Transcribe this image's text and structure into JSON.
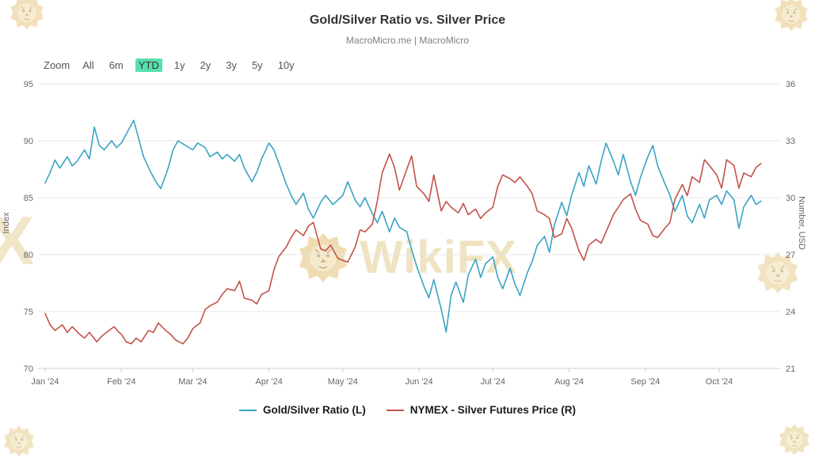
{
  "header": {
    "title": "Gold/Silver Ratio vs. Silver Price",
    "subtitle": "MacroMicro.me | MacroMicro"
  },
  "toolbar": {
    "zoom_label": "Zoom",
    "ranges": [
      "All",
      "6m",
      "YTD",
      "1y",
      "2y",
      "3y",
      "5y",
      "10y"
    ],
    "active_range": "YTD",
    "active_bg": "#57e0ad"
  },
  "watermark": {
    "text": "WikiFX",
    "partial_letter": "X",
    "color": "#eee0bb"
  },
  "chart_data": {
    "type": "line",
    "title": "Gold/Silver Ratio vs. Silver Price",
    "grid": true,
    "legend_position": "bottom",
    "x_tick_labels": [
      "Jan '24",
      "Feb '24",
      "Mar '24",
      "Apr '24",
      "May '24",
      "Jun '24",
      "Jul '24",
      "Aug '24",
      "Sep '24",
      "Oct '24"
    ],
    "x_ticks": [
      {
        "day": 0,
        "label": "Jan '24"
      },
      {
        "day": 31,
        "label": "Feb '24"
      },
      {
        "day": 60,
        "label": "Mar '24"
      },
      {
        "day": 91,
        "label": "Apr '24"
      },
      {
        "day": 121,
        "label": "May '24"
      },
      {
        "day": 152,
        "label": "Jun '24"
      },
      {
        "day": 182,
        "label": "Jul '24"
      },
      {
        "day": 213,
        "label": "Aug '24"
      },
      {
        "day": 244,
        "label": "Sep '24"
      },
      {
        "day": 274,
        "label": "Oct '24"
      }
    ],
    "left_axis": {
      "label": "Index",
      "ticks": [
        70,
        75,
        80,
        85,
        90,
        95
      ],
      "range": [
        70,
        95
      ]
    },
    "right_axis": {
      "label": "Number, USD",
      "ticks": [
        21,
        24,
        27,
        30,
        33,
        36
      ],
      "range": [
        21,
        36
      ]
    },
    "series": [
      {
        "name": "Gold/Silver Ratio (L)",
        "axis": "left",
        "color": "#3aa3c4",
        "points": [
          [
            0,
            86.3
          ],
          [
            2,
            87.2
          ],
          [
            4,
            88.3
          ],
          [
            6,
            87.6
          ],
          [
            9,
            88.6
          ],
          [
            11,
            87.8
          ],
          [
            13,
            88.2
          ],
          [
            16,
            89.2
          ],
          [
            18,
            88.4
          ],
          [
            20,
            91.2
          ],
          [
            22,
            89.6
          ],
          [
            24,
            89.2
          ],
          [
            27,
            90.0
          ],
          [
            29,
            89.4
          ],
          [
            31,
            89.8
          ],
          [
            33,
            90.6
          ],
          [
            36,
            91.8
          ],
          [
            38,
            90.2
          ],
          [
            40,
            88.6
          ],
          [
            43,
            87.2
          ],
          [
            45,
            86.4
          ],
          [
            47,
            85.8
          ],
          [
            50,
            87.6
          ],
          [
            52,
            89.2
          ],
          [
            54,
            90.0
          ],
          [
            57,
            89.6
          ],
          [
            60,
            89.2
          ],
          [
            62,
            89.8
          ],
          [
            65,
            89.4
          ],
          [
            67,
            88.6
          ],
          [
            70,
            89.0
          ],
          [
            72,
            88.4
          ],
          [
            74,
            88.8
          ],
          [
            77,
            88.2
          ],
          [
            79,
            88.8
          ],
          [
            81,
            87.6
          ],
          [
            84,
            86.4
          ],
          [
            86,
            87.2
          ],
          [
            88,
            88.4
          ],
          [
            91,
            89.8
          ],
          [
            93,
            89.2
          ],
          [
            95,
            88.0
          ],
          [
            98,
            86.2
          ],
          [
            100,
            85.2
          ],
          [
            102,
            84.4
          ],
          [
            105,
            85.4
          ],
          [
            107,
            84.0
          ],
          [
            109,
            83.2
          ],
          [
            112,
            84.6
          ],
          [
            114,
            85.2
          ],
          [
            117,
            84.4
          ],
          [
            119,
            84.8
          ],
          [
            121,
            85.2
          ],
          [
            123,
            86.4
          ],
          [
            126,
            84.8
          ],
          [
            128,
            84.2
          ],
          [
            130,
            85.0
          ],
          [
            133,
            83.6
          ],
          [
            135,
            82.8
          ],
          [
            137,
            83.8
          ],
          [
            140,
            82.0
          ],
          [
            142,
            83.2
          ],
          [
            144,
            82.4
          ],
          [
            147,
            82.0
          ],
          [
            149,
            80.4
          ],
          [
            151,
            79.0
          ],
          [
            154,
            77.2
          ],
          [
            156,
            76.2
          ],
          [
            158,
            77.8
          ],
          [
            161,
            75.2
          ],
          [
            163,
            73.2
          ],
          [
            165,
            76.4
          ],
          [
            167,
            77.6
          ],
          [
            170,
            75.8
          ],
          [
            172,
            78.2
          ],
          [
            175,
            79.6
          ],
          [
            177,
            78.0
          ],
          [
            179,
            79.2
          ],
          [
            182,
            79.8
          ],
          [
            184,
            78.0
          ],
          [
            186,
            77.0
          ],
          [
            189,
            78.8
          ],
          [
            191,
            77.4
          ],
          [
            193,
            76.4
          ],
          [
            196,
            78.4
          ],
          [
            198,
            79.4
          ],
          [
            200,
            80.8
          ],
          [
            203,
            81.6
          ],
          [
            205,
            80.2
          ],
          [
            207,
            82.6
          ],
          [
            210,
            84.6
          ],
          [
            212,
            83.4
          ],
          [
            214,
            85.2
          ],
          [
            217,
            87.2
          ],
          [
            219,
            86.0
          ],
          [
            221,
            87.8
          ],
          [
            224,
            86.2
          ],
          [
            226,
            88.2
          ],
          [
            228,
            89.8
          ],
          [
            231,
            88.2
          ],
          [
            233,
            87.0
          ],
          [
            235,
            88.8
          ],
          [
            238,
            86.4
          ],
          [
            240,
            85.2
          ],
          [
            242,
            86.8
          ],
          [
            245,
            88.6
          ],
          [
            247,
            89.6
          ],
          [
            249,
            87.8
          ],
          [
            252,
            86.2
          ],
          [
            254,
            85.2
          ],
          [
            256,
            83.8
          ],
          [
            259,
            85.2
          ],
          [
            261,
            83.4
          ],
          [
            263,
            82.8
          ],
          [
            266,
            84.4
          ],
          [
            268,
            83.2
          ],
          [
            270,
            84.8
          ],
          [
            273,
            85.2
          ],
          [
            275,
            84.4
          ],
          [
            277,
            85.6
          ],
          [
            280,
            84.8
          ],
          [
            282,
            82.3
          ],
          [
            284,
            84.2
          ],
          [
            287,
            85.2
          ],
          [
            289,
            84.4
          ],
          [
            291,
            84.7
          ]
        ]
      },
      {
        "name": "NYMEX - Silver Futures Price (R)",
        "axis": "right",
        "color": "#c2524a",
        "points": [
          [
            0,
            23.9
          ],
          [
            2,
            23.3
          ],
          [
            4,
            23.0
          ],
          [
            7,
            23.3
          ],
          [
            9,
            22.9
          ],
          [
            11,
            23.2
          ],
          [
            14,
            22.8
          ],
          [
            16,
            22.6
          ],
          [
            18,
            22.9
          ],
          [
            21,
            22.4
          ],
          [
            23,
            22.7
          ],
          [
            25,
            22.9
          ],
          [
            28,
            23.2
          ],
          [
            30,
            22.9
          ],
          [
            31,
            22.8
          ],
          [
            33,
            22.4
          ],
          [
            35,
            22.3
          ],
          [
            37,
            22.6
          ],
          [
            39,
            22.4
          ],
          [
            42,
            23.0
          ],
          [
            44,
            22.9
          ],
          [
            46,
            23.4
          ],
          [
            49,
            23.0
          ],
          [
            51,
            22.8
          ],
          [
            53,
            22.5
          ],
          [
            56,
            22.3
          ],
          [
            58,
            22.6
          ],
          [
            60,
            23.1
          ],
          [
            63,
            23.4
          ],
          [
            65,
            24.1
          ],
          [
            67,
            24.3
          ],
          [
            70,
            24.5
          ],
          [
            72,
            24.9
          ],
          [
            74,
            25.2
          ],
          [
            77,
            25.1
          ],
          [
            79,
            25.6
          ],
          [
            81,
            24.7
          ],
          [
            84,
            24.6
          ],
          [
            86,
            24.4
          ],
          [
            88,
            24.9
          ],
          [
            91,
            25.1
          ],
          [
            93,
            26.2
          ],
          [
            95,
            26.9
          ],
          [
            98,
            27.4
          ],
          [
            100,
            27.9
          ],
          [
            102,
            28.3
          ],
          [
            105,
            28.0
          ],
          [
            107,
            28.5
          ],
          [
            109,
            28.7
          ],
          [
            112,
            27.3
          ],
          [
            114,
            27.2
          ],
          [
            116,
            27.5
          ],
          [
            119,
            26.8
          ],
          [
            121,
            26.7
          ],
          [
            123,
            26.6
          ],
          [
            126,
            27.4
          ],
          [
            128,
            28.3
          ],
          [
            130,
            28.2
          ],
          [
            133,
            28.6
          ],
          [
            135,
            29.8
          ],
          [
            137,
            31.3
          ],
          [
            140,
            32.3
          ],
          [
            142,
            31.6
          ],
          [
            144,
            30.4
          ],
          [
            147,
            31.5
          ],
          [
            149,
            32.2
          ],
          [
            151,
            30.6
          ],
          [
            154,
            30.2
          ],
          [
            156,
            29.8
          ],
          [
            158,
            31.2
          ],
          [
            161,
            29.3
          ],
          [
            163,
            29.8
          ],
          [
            165,
            29.5
          ],
          [
            168,
            29.2
          ],
          [
            170,
            29.7
          ],
          [
            172,
            29.1
          ],
          [
            175,
            29.4
          ],
          [
            177,
            28.9
          ],
          [
            179,
            29.2
          ],
          [
            182,
            29.5
          ],
          [
            184,
            30.6
          ],
          [
            186,
            31.2
          ],
          [
            189,
            31.0
          ],
          [
            191,
            30.8
          ],
          [
            193,
            31.1
          ],
          [
            196,
            30.6
          ],
          [
            198,
            30.2
          ],
          [
            200,
            29.3
          ],
          [
            203,
            29.1
          ],
          [
            205,
            28.9
          ],
          [
            207,
            27.9
          ],
          [
            210,
            28.1
          ],
          [
            212,
            28.9
          ],
          [
            214,
            28.4
          ],
          [
            217,
            27.2
          ],
          [
            219,
            26.7
          ],
          [
            221,
            27.5
          ],
          [
            224,
            27.8
          ],
          [
            226,
            27.6
          ],
          [
            228,
            28.2
          ],
          [
            231,
            29.1
          ],
          [
            233,
            29.5
          ],
          [
            235,
            29.9
          ],
          [
            238,
            30.2
          ],
          [
            240,
            29.4
          ],
          [
            242,
            28.8
          ],
          [
            245,
            28.6
          ],
          [
            247,
            28.0
          ],
          [
            249,
            27.9
          ],
          [
            252,
            28.4
          ],
          [
            254,
            28.7
          ],
          [
            256,
            29.9
          ],
          [
            259,
            30.7
          ],
          [
            261,
            30.1
          ],
          [
            263,
            31.1
          ],
          [
            266,
            30.8
          ],
          [
            268,
            32.0
          ],
          [
            270,
            31.7
          ],
          [
            273,
            31.2
          ],
          [
            275,
            30.5
          ],
          [
            277,
            32.0
          ],
          [
            280,
            31.7
          ],
          [
            282,
            30.5
          ],
          [
            284,
            31.3
          ],
          [
            287,
            31.1
          ],
          [
            289,
            31.6
          ],
          [
            291,
            31.8
          ]
        ]
      }
    ]
  }
}
